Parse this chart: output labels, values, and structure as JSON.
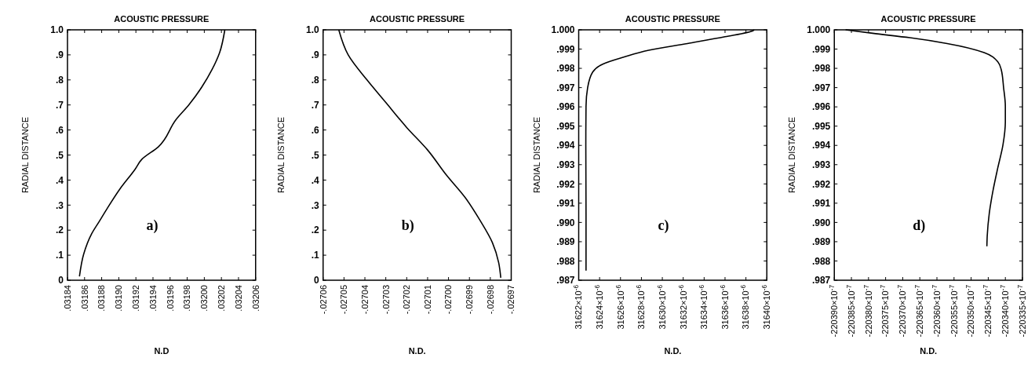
{
  "chart_data": [
    {
      "type": "line",
      "title": "ACOUSTIC PRESSURE",
      "xlabel": "N.D",
      "ylabel": "RADIAL DISTANCE",
      "annotations": [
        "a)"
      ],
      "series": [
        {
          "color": "#000000",
          "x": [
            0.031854,
            0.031859,
            0.031868,
            0.031877,
            0.031886,
            0.031901,
            0.031919,
            0.031927,
            0.031946,
            0.031967,
            0.031982,
            0.031997,
            0.032009,
            0.032018,
            0.032024
          ],
          "values": [
            0.015,
            0.105,
            0.184,
            0.234,
            0.284,
            0.363,
            0.443,
            0.483,
            0.532,
            0.642,
            0.701,
            0.771,
            0.841,
            0.91,
            1.0
          ]
        }
      ],
      "xlim": [
        0.03184,
        0.03206
      ],
      "ylim": [
        0,
        1
      ],
      "xticks": [
        {
          "value": 0.03184,
          "label": ".03184"
        },
        {
          "value": 0.03186,
          "label": ".03186"
        },
        {
          "value": 0.03188,
          "label": ".03188"
        },
        {
          "value": 0.0319,
          "label": ".03190"
        },
        {
          "value": 0.03192,
          "label": ".03192"
        },
        {
          "value": 0.03194,
          "label": ".03194"
        },
        {
          "value": 0.03196,
          "label": ".03196"
        },
        {
          "value": 0.03198,
          "label": ".03198"
        },
        {
          "value": 0.032,
          "label": ".03200"
        },
        {
          "value": 0.03202,
          "label": ".03202"
        },
        {
          "value": 0.03204,
          "label": ".03204"
        },
        {
          "value": 0.03206,
          "label": ".03206"
        }
      ],
      "yticks": [
        0,
        {
          "value": 0.1,
          "label": ".1"
        },
        {
          "value": 0.2,
          "label": ".2"
        },
        {
          "value": 0.3,
          "label": ".3"
        },
        {
          "value": 0.4,
          "label": ".4"
        },
        {
          "value": 0.5,
          "label": ".5"
        },
        {
          "value": 0.6,
          "label": ".6"
        },
        {
          "value": 0.7,
          "label": ".7"
        },
        {
          "value": 0.8,
          "label": ".8"
        },
        {
          "value": 0.9,
          "label": ".9"
        },
        {
          "value": 1,
          "label": "1.0"
        }
      ]
    },
    {
      "type": "line",
      "title": "ACOUSTIC PRESSURE",
      "xlabel": "N.D.",
      "ylabel": "RADIAL DISTANCE",
      "annotations": [
        "b)"
      ],
      "series": [
        {
          "color": "#000000",
          "x": [
            -0.026975,
            -0.026976,
            -0.026979,
            -0.026985,
            -0.026992,
            -0.027001,
            -0.02701,
            -0.02702,
            -0.02703,
            -0.027039,
            -0.027048,
            -0.0270525
          ],
          "values": [
            0.01,
            0.07,
            0.15,
            0.24,
            0.33,
            0.42,
            0.52,
            0.61,
            0.71,
            0.8,
            0.9,
            1.0
          ]
        }
      ],
      "xlim": [
        -0.02706,
        -0.02697
      ],
      "ylim": [
        0,
        1
      ],
      "xticks": [
        {
          "value": -0.02706,
          "label": "-.02706"
        },
        {
          "value": -0.02705,
          "label": "-.02705"
        },
        {
          "value": -0.02704,
          "label": "-.02704"
        },
        {
          "value": -0.02703,
          "label": "-.02703"
        },
        {
          "value": -0.02702,
          "label": "-.02702"
        },
        {
          "value": -0.02701,
          "label": "-.02701"
        },
        {
          "value": -0.027,
          "label": "-.02700"
        },
        {
          "value": -0.02699,
          "label": "-.02699"
        },
        {
          "value": -0.02698,
          "label": "-.02698"
        },
        {
          "value": -0.02697,
          "label": "-.02697"
        }
      ],
      "yticks": [
        0,
        {
          "value": 0.1,
          "label": ".1"
        },
        {
          "value": 0.2,
          "label": ".2"
        },
        {
          "value": 0.3,
          "label": ".3"
        },
        {
          "value": 0.4,
          "label": ".4"
        },
        {
          "value": 0.5,
          "label": ".5"
        },
        {
          "value": 0.6,
          "label": ".6"
        },
        {
          "value": 0.7,
          "label": ".7"
        },
        {
          "value": 0.8,
          "label": ".8"
        },
        {
          "value": 0.9,
          "label": ".9"
        },
        {
          "value": 1,
          "label": "1.0"
        }
      ]
    },
    {
      "type": "line",
      "title": "ACOUSTIC PRESSURE",
      "xlabel": "N.D.",
      "ylabel": "RADIAL DISTANCE",
      "annotations": [
        "c)"
      ],
      "series": [
        {
          "color": "#000000",
          "x": [
            0.0316227,
            0.0316227,
            0.03162268,
            0.0316227,
            0.03162285,
            0.03162334,
            0.0316243,
            0.0316263,
            0.0316287,
            0.0316324,
            0.031636,
            0.0316387,
            0.0316388
          ],
          "values": [
            0.9875,
            0.99047,
            0.99402,
            0.99604,
            0.99698,
            0.99781,
            0.99822,
            0.99858,
            0.99894,
            0.99929,
            0.99964,
            0.99996,
            1.0
          ]
        }
      ],
      "xlim": [
        0.031622,
        0.03164
      ],
      "ylim": [
        0.987,
        1
      ],
      "xticks": [
        {
          "value": 0.031622,
          "label": "31622×10$^{-6}$"
        },
        {
          "value": 0.031624,
          "label": "31624×10$^{-6}$"
        },
        {
          "value": 0.031626,
          "label": "31626×10$^{-6}$"
        },
        {
          "value": 0.031628,
          "label": "31628×10$^{-6}$"
        },
        {
          "value": 0.03163,
          "label": "31630×10$^{-6}$"
        },
        {
          "value": 0.031632,
          "label": "31632×10$^{-6}$"
        },
        {
          "value": 0.031634,
          "label": "31634×10$^{-6}$"
        },
        {
          "value": 0.031636,
          "label": "31636×10$^{-6}$"
        },
        {
          "value": 0.031638,
          "label": "31638×10$^{-6}$"
        },
        {
          "value": 0.03164,
          "label": "31640×10$^{-6}$"
        }
      ],
      "yticks": [
        {
          "value": 0.987,
          "label": ".987"
        },
        {
          "value": 0.988,
          "label": ".988"
        },
        {
          "value": 0.989,
          "label": ".989"
        },
        {
          "value": 0.99,
          "label": ".990"
        },
        {
          "value": 0.991,
          "label": ".991"
        },
        {
          "value": 0.992,
          "label": ".992"
        },
        {
          "value": 0.993,
          "label": ".993"
        },
        {
          "value": 0.994,
          "label": ".994"
        },
        {
          "value": 0.995,
          "label": ".995"
        },
        {
          "value": 0.996,
          "label": ".996"
        },
        {
          "value": 0.997,
          "label": ".997"
        },
        {
          "value": 0.998,
          "label": ".998"
        },
        {
          "value": 0.999,
          "label": ".999"
        },
        {
          "value": 1,
          "label": "1.000"
        }
      ]
    },
    {
      "type": "line",
      "title": "ACOUSTIC PRESSURE",
      "xlabel": "N.D.",
      "ylabel": "RADIAL DISTANCE",
      "annotations": [
        "d)"
      ],
      "series": [
        {
          "color": "#000000",
          "x": [
            -0.02203454,
            -0.02203453,
            -0.02203447,
            -0.02203436,
            -0.02203422,
            -0.02203407,
            -0.022034,
            -0.022034,
            -0.02203405,
            -0.02203412,
            -0.02203422,
            -0.02203462,
            -0.0220357,
            -0.02203679,
            -0.02203788,
            -0.02203867
          ],
          "values": [
            0.98876,
            0.98929,
            0.99047,
            0.99166,
            0.99284,
            0.99402,
            0.99521,
            0.99604,
            0.99698,
            0.99793,
            0.99834,
            0.99882,
            0.99929,
            0.99959,
            0.99982,
            1.0
          ]
        }
      ],
      "xlim": [
        -0.022039,
        -0.0220335
      ],
      "ylim": [
        0.987,
        1
      ],
      "xticks": [
        {
          "value": -0.022039,
          "label": "-220390×10$^{-7}$"
        },
        {
          "value": -0.0220385,
          "label": "-220385×10$^{-7}$"
        },
        {
          "value": -0.022038,
          "label": "-220380×10$^{-7}$"
        },
        {
          "value": -0.0220375,
          "label": "-220375×10$^{-7}$"
        },
        {
          "value": -0.022037,
          "label": "-220370×10$^{-7}$"
        },
        {
          "value": -0.0220365,
          "label": "-220365×10$^{-7}$"
        },
        {
          "value": -0.022036,
          "label": "-220360×10$^{-7}$"
        },
        {
          "value": -0.0220355,
          "label": "-220355×10$^{-7}$"
        },
        {
          "value": -0.022035,
          "label": "-220350×10$^{-7}$"
        },
        {
          "value": -0.0220345,
          "label": "-220345×10$^{-7}$"
        },
        {
          "value": -0.022034,
          "label": "-220340×10$^{-7}$"
        },
        {
          "value": -0.0220335,
          "label": "-220335×10$^{-7}$"
        }
      ],
      "yticks": [
        {
          "value": 0.987,
          "label": ".987"
        },
        {
          "value": 0.988,
          "label": ".988"
        },
        {
          "value": 0.989,
          "label": ".989"
        },
        {
          "value": 0.99,
          "label": ".990"
        },
        {
          "value": 0.991,
          "label": ".991"
        },
        {
          "value": 0.992,
          "label": ".992"
        },
        {
          "value": 0.993,
          "label": ".993"
        },
        {
          "value": 0.994,
          "label": ".994"
        },
        {
          "value": 0.995,
          "label": ".995"
        },
        {
          "value": 0.996,
          "label": ".996"
        },
        {
          "value": 0.997,
          "label": ".997"
        },
        {
          "value": 0.998,
          "label": ".998"
        },
        {
          "value": 0.999,
          "label": ".999"
        },
        {
          "value": 1,
          "label": "1.000"
        }
      ]
    }
  ]
}
